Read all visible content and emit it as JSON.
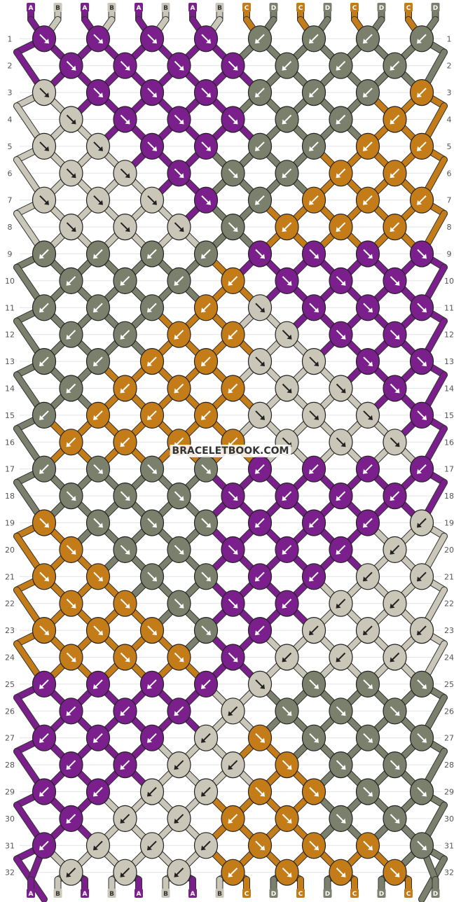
{
  "watermark": "BRACELETBOOK.COM",
  "strand_colors": {
    "A": "#7a1f8c",
    "B": "#cac6b8",
    "C": "#c47c18",
    "D": "#7a806b"
  },
  "top_labels": [
    "A",
    "B",
    "A",
    "B",
    "A",
    "B",
    "A",
    "B",
    "C",
    "D",
    "C",
    "D",
    "C",
    "D",
    "C",
    "D"
  ],
  "bottom_labels": [
    "A",
    "B",
    "A",
    "B",
    "A",
    "B",
    "A",
    "B",
    "C",
    "D",
    "C",
    "D",
    "C",
    "D",
    "C",
    "D"
  ],
  "row_numbers": [
    "1",
    "2",
    "3",
    "4",
    "5",
    "6",
    "7",
    "8",
    "9",
    "10",
    "11",
    "12",
    "13",
    "14",
    "15",
    "16",
    "17",
    "18",
    "19",
    "20",
    "21",
    "22",
    "23",
    "24",
    "25",
    "26",
    "27",
    "28",
    "29",
    "30",
    "31",
    "32"
  ],
  "grid": {
    "strands": 16,
    "rows": 32,
    "knots_odd_row": 8,
    "knots_even_row": 7
  },
  "knot_colors": [
    "AAAADDDD",
    "AAAADDD",
    "BAAADDDC",
    "BAAADDC",
    "BBAADDCC",
    "BBADDCC",
    "BBBADCCC",
    "BBBDCCC",
    "DDDDAAAA",
    "DDDCAAA",
    "DDDCBAAA",
    "DDCCBAA",
    "DDCCBBAA",
    "DCCCBBA",
    "DCCCBBBA",
    "CCCCBBB",
    "DDDDAAAA",
    "DDDAAAA",
    "CDDDAAAB",
    "CDDAAAB",
    "CCDDAABB",
    "CCDAABB",
    "CCCDABBB",
    "CCCABBB",
    "AAAABDDD",
    "AAABDDD",
    "AAABCDDD",
    "AABBCDD",
    "AABBCCDD",
    "ABBCCDD",
    "ABBBCCCD",
    "BBBCCCC"
  ],
  "knot_arrows": [
    "RRRRLLLL",
    "RRRRLLL",
    "RRRRLLLL",
    "RRRRLLL",
    "RRRRLLLL",
    "RRRRLLL",
    "RRRRLLLL",
    "RRRRLLL",
    "LLLLRRRR",
    "LLLLRRR",
    "LLLLRRRR",
    "LLLLRRR",
    "LLLLRRRR",
    "LLLLRRR",
    "LLLLRRRR",
    "LLLLRRR",
    "LRRRLLLL",
    "RRRRLLL",
    "RRRRLLLL",
    "RRRRLLL",
    "RRRRLLLL",
    "RRRRLLL",
    "RRRRLLLL",
    "RRRRLLL",
    "LLLLRRRR",
    "LLLLRRR",
    "LLLLRRRR",
    "LLLLRRR",
    "LLLLRRRR",
    "LLLLRRR",
    "LLLLRRRR",
    "LLLLRRR"
  ]
}
